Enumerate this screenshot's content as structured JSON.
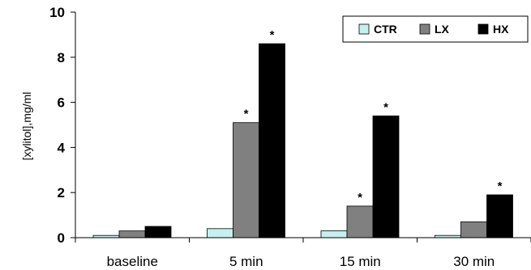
{
  "chart_data": {
    "type": "bar",
    "title": "",
    "xlabel": "",
    "ylabel": "[xylitol],mg/ml",
    "ylim": [
      0,
      10
    ],
    "yticks": [
      "0",
      "2",
      "4",
      "6",
      "8",
      "10"
    ],
    "categories": [
      "baseline",
      "5 min",
      "15 min",
      "30 min"
    ],
    "legend_position": "top-right",
    "grid": false,
    "series": [
      {
        "name": "CTR",
        "color": "#c6eff0",
        "values": [
          0.1,
          0.4,
          0.3,
          0.1
        ]
      },
      {
        "name": "LX",
        "color": "#808080",
        "values": [
          0.3,
          5.1,
          1.4,
          0.7
        ]
      },
      {
        "name": "HX",
        "color": "#000000",
        "values": [
          0.5,
          8.6,
          5.4,
          1.9
        ]
      }
    ],
    "annotations": [
      {
        "text": "*",
        "series": "LX",
        "category": "5 min"
      },
      {
        "text": "*",
        "series": "HX",
        "category": "5 min"
      },
      {
        "text": "*",
        "series": "LX",
        "category": "15 min"
      },
      {
        "text": "*",
        "series": "HX",
        "category": "15 min"
      },
      {
        "text": "*",
        "series": "HX",
        "category": "30 min"
      }
    ]
  }
}
